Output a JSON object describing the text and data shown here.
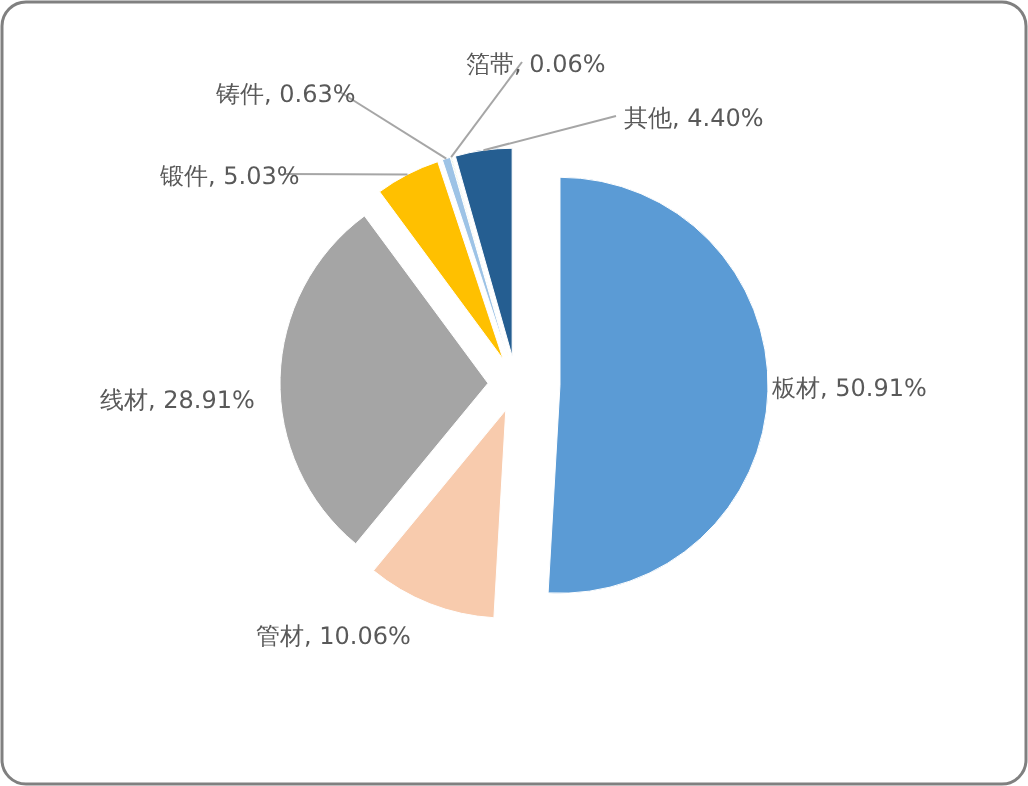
{
  "chart_data": {
    "type": "pie",
    "categories": [
      "板材",
      "管材",
      "线材",
      "锻件",
      "铸件",
      "箔带",
      "其他"
    ],
    "values": [
      50.91,
      10.06,
      28.91,
      5.03,
      0.63,
      0.06,
      4.4
    ],
    "colors": [
      "#5b9bd5",
      "#f8cbad",
      "#a5a5a5",
      "#ffc000",
      "#9dc3e6",
      "#70ad47",
      "#255e91"
    ],
    "value_labels": [
      ", 50.91%",
      ", 10.06%",
      ", 28.91%",
      ", 5.03%",
      ", 0.63%",
      ", 0.06%",
      ", 4.40%"
    ],
    "legend": false
  }
}
